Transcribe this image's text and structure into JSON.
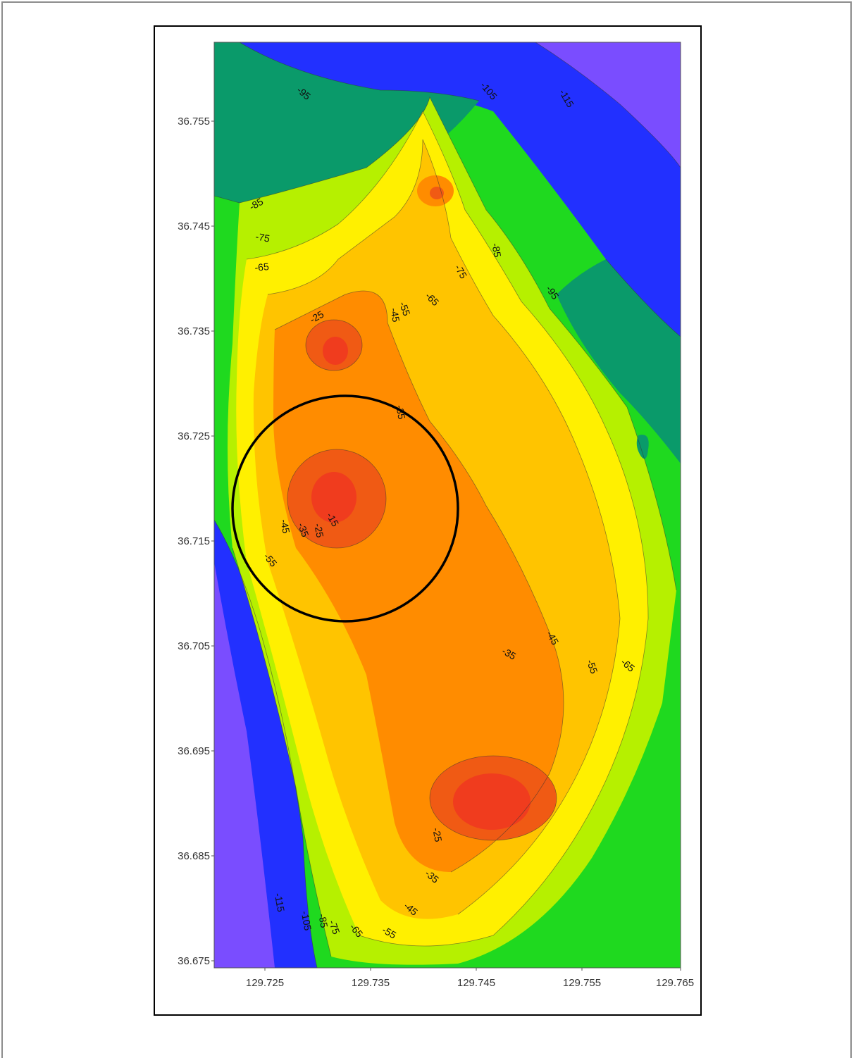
{
  "map": {
    "y_ticks": [
      "36.755",
      "36.745",
      "36.735",
      "36.725",
      "36.715",
      "36.705",
      "36.695",
      "36.685",
      "36.675"
    ],
    "x_ticks": [
      "129.725",
      "129.735",
      "129.745",
      "129.755",
      "129.765"
    ],
    "contour_labels": [
      "-95",
      "-105",
      "-115",
      "-85",
      "-75",
      "-65",
      "-85",
      "-75",
      "-95",
      "-65",
      "-55",
      "-45",
      "-25",
      "-35",
      "-15",
      "-25",
      "-35",
      "-45",
      "-55",
      "-45",
      "-35",
      "-55",
      "-65",
      "-25",
      "-35",
      "-45",
      "-55",
      "-65",
      "-75",
      "-85",
      "-105",
      "-115"
    ],
    "colors": {
      "deep": "#7a4dff",
      "blue": "#2230ff",
      "teal": "#0a9a6a",
      "green": "#1edc1e",
      "lime": "#b6f000",
      "yellow": "#fff000",
      "gold": "#ffc400",
      "orange": "#ff8c00",
      "red": "#f03c1e"
    },
    "marker": "circle-highlight"
  }
}
